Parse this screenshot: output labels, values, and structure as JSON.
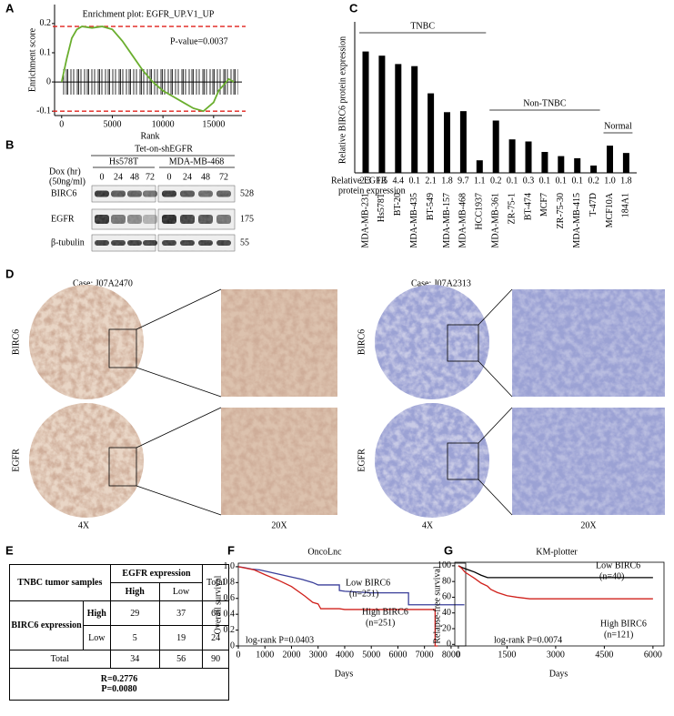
{
  "panel_labels": [
    "A",
    "B",
    "C",
    "D",
    "E",
    "F",
    "G"
  ],
  "chart_data": [
    {
      "type": "line",
      "title": "Enrichment plot: EGFR_UP.V1_UP",
      "xlabel": "Rank",
      "ylabel": "Enrichment score",
      "xlim": [
        -700,
        17800
      ],
      "ylim": [
        -0.115,
        0.265
      ],
      "xticks": [
        0,
        5000,
        10000,
        15000
      ],
      "yticks": [
        -0.1,
        0,
        0.1,
        0.2
      ],
      "annotation": "P-value=0.0037",
      "reference_lines": [
        0.19,
        -0.1
      ],
      "reference_color": "#e0201b",
      "series": [
        {
          "color": "#6aae2e",
          "x": [
            0,
            500,
            1000,
            1500,
            2000,
            3000,
            4000,
            5000,
            6000,
            7000,
            8000,
            9000,
            10000,
            11000,
            12000,
            13000,
            14000,
            15000,
            15500,
            16000,
            16500,
            17000
          ],
          "values": [
            0,
            0.08,
            0.15,
            0.18,
            0.19,
            0.185,
            0.19,
            0.18,
            0.14,
            0.09,
            0.04,
            0,
            -0.03,
            -0.05,
            -0.07,
            -0.09,
            -0.1,
            -0.07,
            -0.03,
            -0.01,
            0.01,
            0
          ]
        }
      ]
    },
    {
      "type": "bar",
      "ylabel": "Relative BIRC6 protein expression",
      "ylim": [
        0,
        7
      ],
      "color": "#000000",
      "categories": [
        "MDA-MB-231",
        "Hs578T",
        "BT-20",
        "MDA-MB-435",
        "BT-549",
        "MDA-MB-157",
        "MDA-MB-468",
        "HCC1937",
        "MDA-MB-361",
        "ZR-75-1",
        "BT-474",
        "MCF7",
        "ZR-75-30",
        "MDA-MB-415",
        "T-47D",
        "MCF10A",
        "184A1"
      ],
      "values": [
        5.8,
        5.6,
        5.2,
        5.1,
        3.8,
        2.9,
        2.95,
        0.6,
        2.5,
        1.6,
        1.5,
        1.0,
        0.8,
        0.7,
        0.35,
        1.3,
        0.95
      ],
      "egfr_row_label": [
        "Relative EGFR",
        "protein expression"
      ],
      "egfr_labels": [
        "2.3",
        "1.5",
        "4.4",
        "0.1",
        "2.1",
        "1.8",
        "9.7",
        "1.1",
        "0.2",
        "0.1",
        "0.3",
        "0.1",
        "0.1",
        "0.1",
        "0.2",
        "1.0",
        "1.8"
      ],
      "egfr_label_colors": [
        "#d0201b",
        "#d0201b",
        "#d0201b",
        "#000000",
        "#d0201b",
        "#d0201b",
        "#d0201b",
        "#000000",
        "#000000",
        "#000000",
        "#000000",
        "#000000",
        "#000000",
        "#000000",
        "#000000",
        "#000000",
        "#000000"
      ],
      "groups": [
        "TNBC",
        "Non-TNBC",
        "Normal"
      ]
    },
    {
      "type": "line",
      "title": "OncoLnc",
      "xlabel": "Days",
      "ylabel": "Overall survival",
      "xlim": [
        0,
        8550
      ],
      "ylim": [
        0,
        1.045
      ],
      "xticks": [
        0,
        1000,
        2000,
        3000,
        4000,
        5000,
        6000,
        7000,
        8000
      ],
      "yticks": [
        0,
        0.2,
        0.4,
        0.6,
        0.8,
        {
          "value": 1,
          "label": "1.0"
        }
      ],
      "annotation": "log-rank P=0.0403",
      "series": [
        {
          "name": "Low BIRC6",
          "n": "(n=251)",
          "color": "#3a3f9a",
          "x": [
            0,
            200,
            500,
            800,
            1200,
            1600,
            2000,
            2400,
            2800,
            3000,
            3800,
            3800,
            4000,
            5000,
            6400,
            6400,
            8500
          ],
          "values": [
            1,
            0.99,
            0.97,
            0.96,
            0.93,
            0.9,
            0.87,
            0.84,
            0.8,
            0.77,
            0.77,
            0.7,
            0.69,
            0.67,
            0.67,
            0.52,
            0.52
          ]
        },
        {
          "name": "High BIRC6",
          "n": "(n=251)",
          "color": "#d0201b",
          "x": [
            0,
            300,
            600,
            1000,
            1500,
            2000,
            2500,
            2800,
            3000,
            3100,
            3800,
            4000,
            7400,
            7400,
            7500
          ],
          "values": [
            1,
            0.98,
            0.96,
            0.9,
            0.83,
            0.75,
            0.63,
            0.55,
            0.53,
            0.47,
            0.47,
            0.46,
            0.46,
            0,
            0
          ]
        }
      ]
    },
    {
      "type": "line",
      "title": "KM-plotter",
      "xlabel": "Days",
      "ylabel": "Relapse-free survival",
      "xlim": [
        -110,
        6340
      ],
      "ylim": [
        -2,
        104.5
      ],
      "xticks": [
        0,
        1500,
        3000,
        4500,
        6000
      ],
      "yticks": [
        0,
        20,
        40,
        60,
        80,
        100
      ],
      "annotation": "log-rank P=0.0074",
      "series": [
        {
          "name": "Low BIRC6",
          "n": "(n=40)",
          "color": "#000000",
          "x": [
            0,
            100,
            300,
            500,
            700,
            900,
            6000
          ],
          "values": [
            100,
            98,
            95,
            92,
            88,
            85,
            85
          ]
        },
        {
          "name": "High BIRC6",
          "n": "(n=121)",
          "color": "#d0201b",
          "x": [
            0,
            100,
            200,
            350,
            500,
            700,
            900,
            1000,
            1200,
            1500,
            1800,
            2200,
            6000
          ],
          "values": [
            100,
            97,
            92,
            88,
            84,
            78,
            74,
            70,
            66,
            62,
            60,
            58,
            58
          ]
        }
      ]
    }
  ],
  "blot": {
    "header": "Tet-on-shEGFR",
    "cell_lines": [
      "Hs578T",
      "MDA-MB-468"
    ],
    "treatment": [
      "Dox (hr)",
      "(50ng/ml)"
    ],
    "timepoints": [
      0,
      24,
      48,
      72
    ],
    "proteins": [
      "BIRC6",
      "EGFR",
      "β-tubulin"
    ],
    "sizes": [
      528,
      175,
      55
    ]
  },
  "ihc": {
    "cases": [
      "Case: J07A2470",
      "Case: J07A2313"
    ],
    "stains": [
      "BIRC6",
      "EGFR"
    ],
    "magnifications": [
      "4X",
      "20X"
    ]
  },
  "table": {
    "header": [
      "TNBC tumor samples",
      "EGFR expression",
      "Total"
    ],
    "subheader": [
      "High",
      "Low"
    ],
    "row_group": "BIRC6 expression",
    "rows": [
      [
        "High",
        29,
        37,
        66
      ],
      [
        "Low",
        5,
        19,
        24
      ],
      [
        "Total",
        34,
        56,
        90
      ]
    ],
    "footer": [
      "R=0.2776",
      "P=0.0080"
    ]
  }
}
